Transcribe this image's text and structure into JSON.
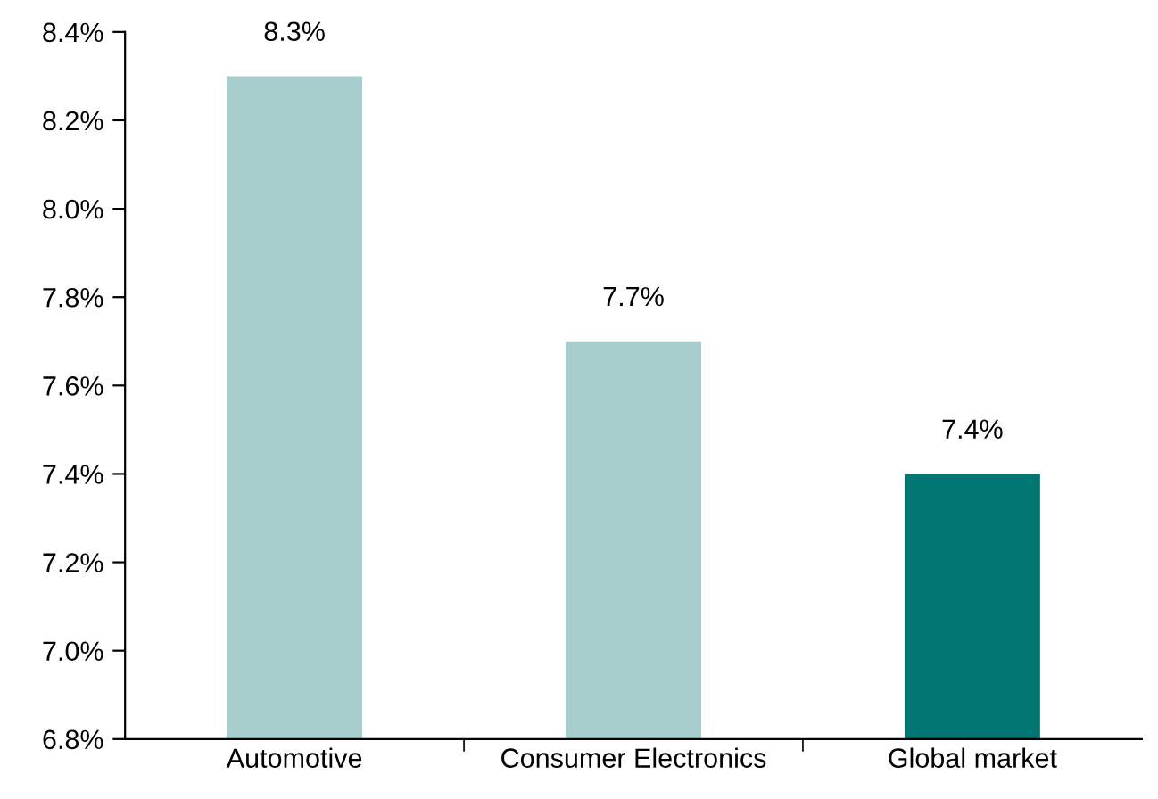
{
  "chart_data": {
    "type": "bar",
    "categories": [
      "Automotive",
      "Consumer Electronics",
      "Global market"
    ],
    "values": [
      8.3,
      7.7,
      7.4
    ],
    "colors": [
      "#a7cdcc",
      "#a7cdcc",
      "#007672"
    ],
    "value_labels": [
      "8.3%",
      "7.7%",
      "7.4%"
    ],
    "ylim": [
      6.8,
      8.4
    ],
    "yticks": [
      {
        "value": 6.8,
        "label": "6.8%"
      },
      {
        "value": 7.0,
        "label": "7.0%"
      },
      {
        "value": 7.2,
        "label": "7.2%"
      },
      {
        "value": 7.4,
        "label": "7.4%"
      },
      {
        "value": 7.6,
        "label": "7.6%"
      },
      {
        "value": 7.8,
        "label": "7.8%"
      },
      {
        "value": 8.0,
        "label": "8.0%"
      },
      {
        "value": 8.2,
        "label": "8.2%"
      },
      {
        "value": 8.4,
        "label": "8.4%"
      }
    ],
    "grid": false,
    "legend": false
  }
}
